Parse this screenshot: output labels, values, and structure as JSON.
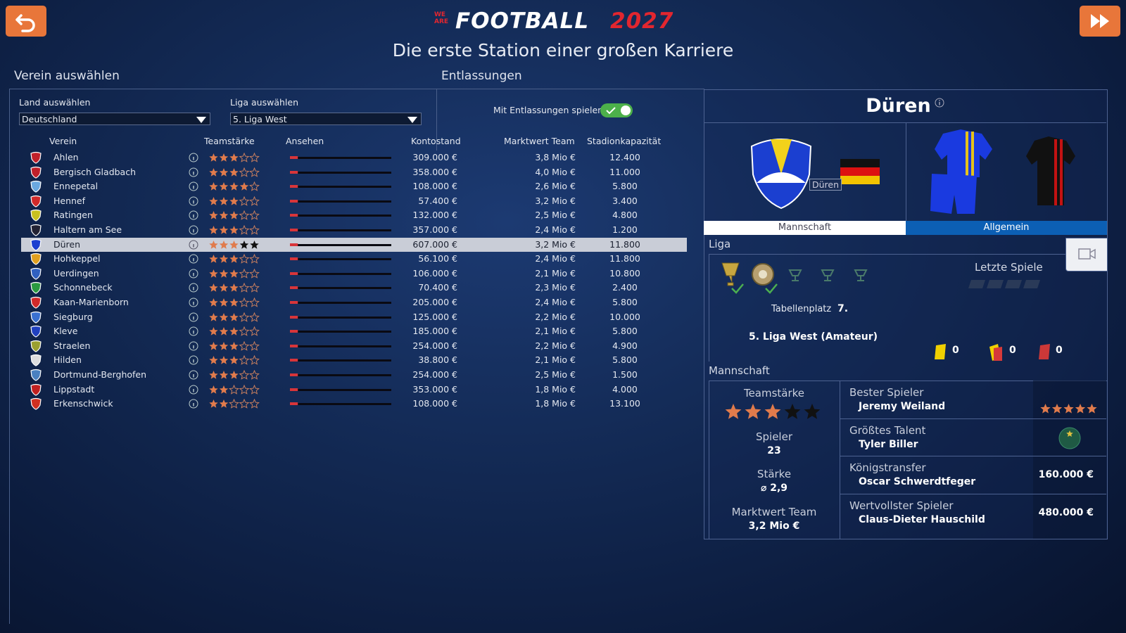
{
  "header": {
    "logo": {
      "we": "WE",
      "are": "ARE",
      "football": "FOOTBALL",
      "year": "2027"
    },
    "subtitle": "Die erste Station einer großen Karriere"
  },
  "club_select": {
    "title": "Verein auswählen",
    "country": {
      "label": "Land auswählen",
      "value": "Deutschland"
    },
    "league": {
      "label": "Liga auswählen",
      "value": "5. Liga West"
    },
    "table": {
      "columns": [
        "Verein",
        "Teamstärke",
        "Ansehen",
        "Kontostand",
        "Marktwert Team",
        "Stadionkapazität"
      ],
      "selected_row": 6,
      "rows": [
        {
          "name": "Ahlen",
          "strength": 3,
          "reputation": 5,
          "balance": "309.000 €",
          "market_value": "3,8 Mio €",
          "stadium": "12.400"
        },
        {
          "name": "Bergisch Gladbach",
          "strength": 3,
          "reputation": 5,
          "balance": "358.000 €",
          "market_value": "4,0 Mio €",
          "stadium": "11.000"
        },
        {
          "name": "Ennepetal",
          "strength": 4,
          "reputation": 5,
          "balance": "108.000 €",
          "market_value": "2,6 Mio €",
          "stadium": "5.800"
        },
        {
          "name": "Hennef",
          "strength": 3,
          "reputation": 5,
          "balance": "57.400 €",
          "market_value": "3,2 Mio €",
          "stadium": "3.400"
        },
        {
          "name": "Ratingen",
          "strength": 3,
          "reputation": 5,
          "balance": "132.000 €",
          "market_value": "2,5 Mio €",
          "stadium": "4.800"
        },
        {
          "name": "Haltern am See",
          "strength": 3,
          "reputation": 5,
          "balance": "357.000 €",
          "market_value": "2,4 Mio €",
          "stadium": "1.200"
        },
        {
          "name": "Düren",
          "strength": 3,
          "reputation": 5,
          "balance": "607.000 €",
          "market_value": "3,2 Mio €",
          "stadium": "11.800"
        },
        {
          "name": "Hohkeppel",
          "strength": 3,
          "reputation": 5,
          "balance": "56.100 €",
          "market_value": "2,4 Mio €",
          "stadium": "11.800"
        },
        {
          "name": "Uerdingen",
          "strength": 3,
          "reputation": 5,
          "balance": "106.000 €",
          "market_value": "2,1 Mio €",
          "stadium": "10.800"
        },
        {
          "name": "Schonnebeck",
          "strength": 3,
          "reputation": 5,
          "balance": "70.400 €",
          "market_value": "2,3 Mio €",
          "stadium": "2.400"
        },
        {
          "name": "Kaan-Marienborn",
          "strength": 3,
          "reputation": 5,
          "balance": "205.000 €",
          "market_value": "2,4 Mio €",
          "stadium": "5.800"
        },
        {
          "name": "Siegburg",
          "strength": 3,
          "reputation": 5,
          "balance": "125.000 €",
          "market_value": "2,2 Mio €",
          "stadium": "10.000"
        },
        {
          "name": "Kleve",
          "strength": 3,
          "reputation": 5,
          "balance": "185.000 €",
          "market_value": "2,1 Mio €",
          "stadium": "5.800"
        },
        {
          "name": "Straelen",
          "strength": 3,
          "reputation": 5,
          "balance": "254.000 €",
          "market_value": "2,2 Mio €",
          "stadium": "4.900"
        },
        {
          "name": "Hilden",
          "strength": 3,
          "reputation": 5,
          "balance": "38.800 €",
          "market_value": "2,1 Mio €",
          "stadium": "5.800"
        },
        {
          "name": "Dortmund-Berghofen",
          "strength": 3,
          "reputation": 5,
          "balance": "254.000 €",
          "market_value": "2,5 Mio €",
          "stadium": "1.500"
        },
        {
          "name": "Lippstadt",
          "strength": 2,
          "reputation": 5,
          "balance": "353.000 €",
          "market_value": "1,8 Mio €",
          "stadium": "4.000"
        },
        {
          "name": "Erkenschwick",
          "strength": 2,
          "reputation": 5,
          "balance": "108.000 €",
          "market_value": "1,8 Mio €",
          "stadium": "13.100"
        }
      ]
    }
  },
  "dismissals": {
    "title": "Entlassungen",
    "toggle_label": "Mit Entlassungen spielen",
    "toggle_on": true
  },
  "club_detail": {
    "name": "Düren",
    "badge_tooltip": "Düren",
    "tabs": [
      "Mannschaft",
      "Allgemein"
    ],
    "active_tab": 0,
    "league": {
      "title": "Liga",
      "recent_title": "Letzte Spiele",
      "position_label": "Tabellenplatz",
      "position": "7.",
      "league_name": "5. Liga West (Amateur)",
      "cards": {
        "yellow": 0,
        "yellow_red": 0,
        "red": 0
      }
    },
    "team": {
      "title": "Mannschaft",
      "strength_label": "Teamstärke",
      "strength": 3,
      "players_label": "Spieler",
      "players": 23,
      "rating_label": "Stärke",
      "rating": "⌀ 2,9",
      "market_label": "Marktwert Team",
      "market_value": "3,2 Mio €",
      "highlights": [
        {
          "label": "Bester Spieler",
          "player": "Jeremy Weiland",
          "stars": 5
        },
        {
          "label": "Größtes Talent",
          "player": "Tyler Biller"
        },
        {
          "label": "Königstransfer",
          "player": "Oscar Schwerdtfeger",
          "value": "160.000 €"
        },
        {
          "label": "Wertvollster Spieler",
          "player": "Claus-Dieter Hauschild",
          "value": "480.000 €"
        }
      ]
    }
  }
}
